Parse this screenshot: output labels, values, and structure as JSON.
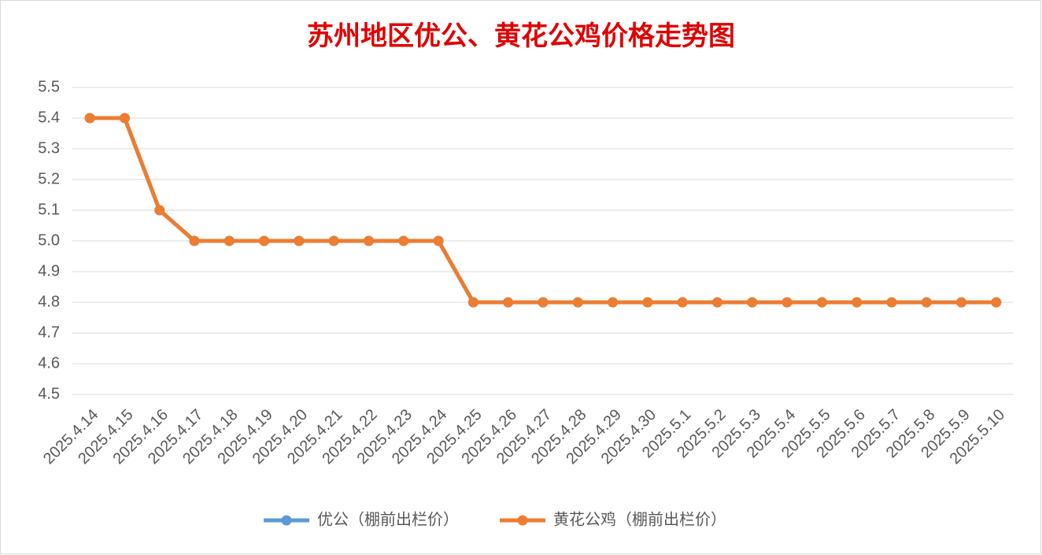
{
  "chart_data": {
    "type": "line",
    "title": "苏州地区优公、黄花公鸡价格走势图",
    "categories": [
      "2025.4.14",
      "2025.4.15",
      "2025.4.16",
      "2025.4.17",
      "2025.4.18",
      "2025.4.19",
      "2025.4.20",
      "2025.4.21",
      "2025.4.22",
      "2025.4.23",
      "2025.4.24",
      "2025.4.25",
      "2025.4.26",
      "2025.4.27",
      "2025.4.28",
      "2025.4.29",
      "2025.4.30",
      "2025.5.1",
      "2025.5.2",
      "2025.5.3",
      "2025.5.4",
      "2025.5.5",
      "2025.5.6",
      "2025.5.7",
      "2025.5.8",
      "2025.5.9",
      "2025.5.10"
    ],
    "series": [
      {
        "name": "优公（棚前出栏价）",
        "color": "#5b9bd5",
        "values": [
          5.4,
          5.4,
          5.1,
          5.0,
          5.0,
          5.0,
          5.0,
          5.0,
          5.0,
          5.0,
          5.0,
          4.8,
          4.8,
          4.8,
          4.8,
          4.8,
          4.8,
          4.8,
          4.8,
          4.8,
          4.8,
          4.8,
          4.8,
          4.8,
          4.8,
          4.8,
          4.8
        ]
      },
      {
        "name": "黄花公鸡（棚前出栏价）",
        "color": "#ed7d31",
        "values": [
          5.4,
          5.4,
          5.1,
          5.0,
          5.0,
          5.0,
          5.0,
          5.0,
          5.0,
          5.0,
          5.0,
          4.8,
          4.8,
          4.8,
          4.8,
          4.8,
          4.8,
          4.8,
          4.8,
          4.8,
          4.8,
          4.8,
          4.8,
          4.8,
          4.8,
          4.8,
          4.8
        ]
      }
    ],
    "ylim": [
      4.5,
      5.5
    ],
    "yticks": [
      4.5,
      4.6,
      4.7,
      4.8,
      4.9,
      {
        "value": 5.0,
        "label": "5.0"
      },
      5.1,
      5.2,
      5.3,
      5.4,
      5.5
    ],
    "grid": true,
    "legend": "bottom"
  }
}
